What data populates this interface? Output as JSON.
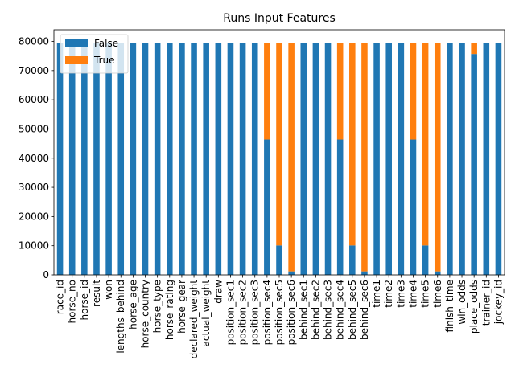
{
  "chart_data": {
    "type": "bar",
    "stacked": true,
    "title": "Runs Input Features",
    "xlabel": "",
    "ylabel": "",
    "ylim": [
      0,
      84000
    ],
    "yticks": [
      0,
      10000,
      20000,
      30000,
      40000,
      50000,
      60000,
      70000,
      80000
    ],
    "grid": false,
    "legend_position": "upper-left",
    "categories": [
      "race_id",
      "horse_no",
      "horse_id",
      "result",
      "won",
      "lengths_behind",
      "horse_age",
      "horse_country",
      "horse_type",
      "horse_rating",
      "horse_gear",
      "declared_weight",
      "actual_weight",
      "draw",
      "position_sec1",
      "position_sec2",
      "position_sec3",
      "position_sec4",
      "position_sec5",
      "position_sec6",
      "behind_sec1",
      "behind_sec2",
      "behind_sec3",
      "behind_sec4",
      "behind_sec5",
      "behind_sec6",
      "time1",
      "time2",
      "time3",
      "time4",
      "time5",
      "time6",
      "finish_time",
      "win_odds",
      "place_odds",
      "trainer_id",
      "jockey_id"
    ],
    "series": [
      {
        "name": "False",
        "color": "#1f77b4",
        "values": [
          79447,
          79447,
          79447,
          79447,
          79447,
          79447,
          79447,
          79447,
          79447,
          79447,
          79447,
          79447,
          79447,
          79447,
          79447,
          79447,
          79447,
          46400,
          10100,
          1200,
          79447,
          79447,
          79447,
          46400,
          10100,
          1200,
          79447,
          79447,
          79447,
          46400,
          10100,
          1200,
          79447,
          79447,
          75700,
          79447,
          79447
        ]
      },
      {
        "name": "True",
        "color": "#ff7f0e",
        "values": [
          0,
          0,
          0,
          0,
          0,
          0,
          0,
          0,
          0,
          0,
          0,
          0,
          0,
          0,
          0,
          0,
          0,
          33047,
          69347,
          78247,
          0,
          0,
          0,
          33047,
          69347,
          78247,
          0,
          0,
          0,
          33047,
          69347,
          78247,
          0,
          0,
          3747,
          0,
          0
        ]
      }
    ]
  }
}
